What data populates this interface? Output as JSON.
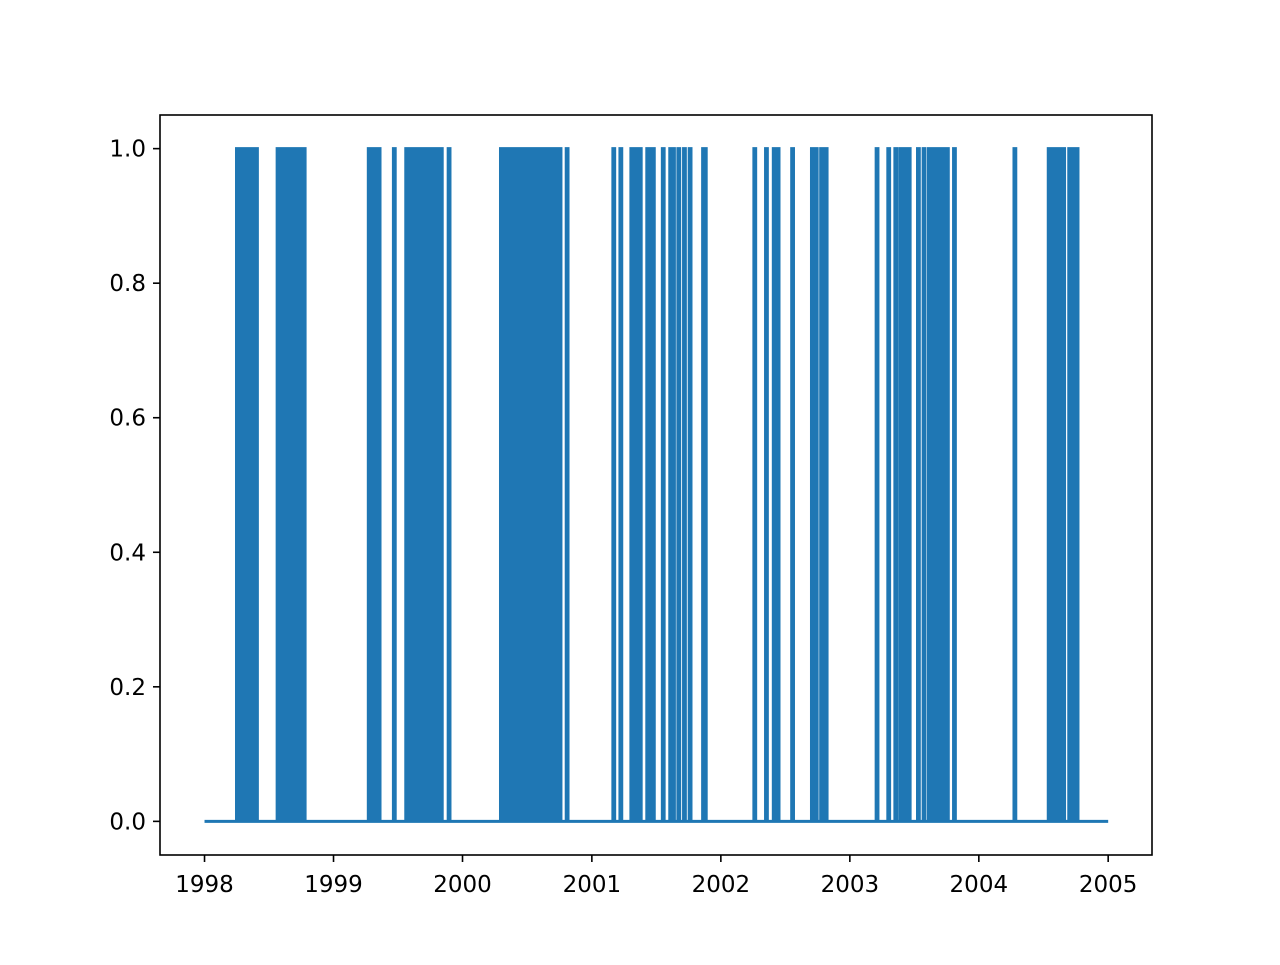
{
  "chart_data": {
    "type": "line",
    "title": "",
    "xlabel": "",
    "ylabel": "",
    "xlim": [
      "1997-08-28",
      "2005-05-05"
    ],
    "ylim": [
      -0.05,
      1.05
    ],
    "x_ticks": [
      "1998",
      "1999",
      "2000",
      "2001",
      "2002",
      "2003",
      "2004",
      "2005"
    ],
    "y_ticks": [
      "0.0",
      "0.2",
      "0.4",
      "0.6",
      "0.8",
      "1.0"
    ],
    "grid": false,
    "legend": "none",
    "series_color": "#1f77b4",
    "series": [
      {
        "x_range": [
          "1998-01-01",
          "2005-01-01"
        ],
        "baseline": 0,
        "spike_value": 1,
        "spikes": [
          "1998-04-04",
          "1998-04-06",
          "1998-04-08",
          "1998-04-11",
          "1998-04-13",
          "1998-04-16",
          "1998-04-19",
          "1998-04-22",
          "1998-04-25",
          "1998-04-28",
          "1998-05-01",
          "1998-05-04",
          "1998-05-08",
          "1998-05-12",
          "1998-05-16",
          "1998-05-20",
          "1998-05-24",
          "1998-05-28",
          "1998-07-28",
          "1998-08-03",
          "1998-08-10",
          "1998-08-17",
          "1998-08-25",
          "1998-09-02",
          "1998-09-10",
          "1998-09-17",
          "1998-09-23",
          "1998-09-29",
          "1998-10-05",
          "1998-10-10",
          "1999-04-12",
          "1999-04-20",
          "1999-04-28",
          "1999-05-10",
          "1999-06-22",
          "1999-07-27",
          "1999-08-01",
          "1999-08-06",
          "1999-08-10",
          "1999-08-15",
          "1999-08-20",
          "1999-08-25",
          "1999-08-29",
          "1999-09-03",
          "1999-09-08",
          "1999-09-13",
          "1999-09-17",
          "1999-09-22",
          "1999-09-27",
          "1999-10-02",
          "1999-10-07",
          "1999-10-11",
          "1999-10-16",
          "1999-10-22",
          "1999-10-26",
          "1999-11-02",
          "1999-11-24",
          "2000-04-20",
          "2000-04-29",
          "2000-05-06",
          "2000-05-12",
          "2000-05-18",
          "2000-05-25",
          "2000-06-02",
          "2000-06-10",
          "2000-06-17",
          "2000-06-24",
          "2000-07-01",
          "2000-07-06",
          "2000-07-10",
          "2000-07-15",
          "2000-07-19",
          "2000-07-24",
          "2000-07-28",
          "2000-08-02",
          "2000-08-06",
          "2000-08-11",
          "2000-08-15",
          "2000-08-20",
          "2000-08-25",
          "2000-08-30",
          "2000-09-04",
          "2000-09-10",
          "2000-09-17",
          "2000-09-24",
          "2000-10-03",
          "2000-10-23",
          "2001-03-04",
          "2001-03-24",
          "2001-04-24",
          "2001-05-02",
          "2001-05-10",
          "2001-05-18",
          "2001-06-08",
          "2001-06-16",
          "2001-06-24",
          "2001-07-22",
          "2001-08-12",
          "2001-08-20",
          "2001-09-04",
          "2001-09-20",
          "2001-10-06",
          "2001-11-13",
          "2001-11-18",
          "2002-04-07",
          "2002-05-10",
          "2002-06-01",
          "2002-06-12",
          "2002-07-23",
          "2002-09-17",
          "2002-09-28",
          "2002-10-13",
          "2002-10-26",
          "2003-03-19",
          "2003-04-21",
          "2003-05-11",
          "2003-05-25",
          "2003-06-02",
          "2003-06-10",
          "2003-06-18",
          "2003-07-14",
          "2003-07-30",
          "2003-08-14",
          "2003-08-24",
          "2003-09-03",
          "2003-09-12",
          "2003-09-20",
          "2003-09-28",
          "2003-10-04",
          "2003-10-24",
          "2004-04-12",
          "2004-07-18",
          "2004-07-26",
          "2004-08-03",
          "2004-08-11",
          "2004-08-19",
          "2004-08-28",
          "2004-09-14",
          "2004-09-26",
          "2004-10-05"
        ]
      }
    ]
  }
}
